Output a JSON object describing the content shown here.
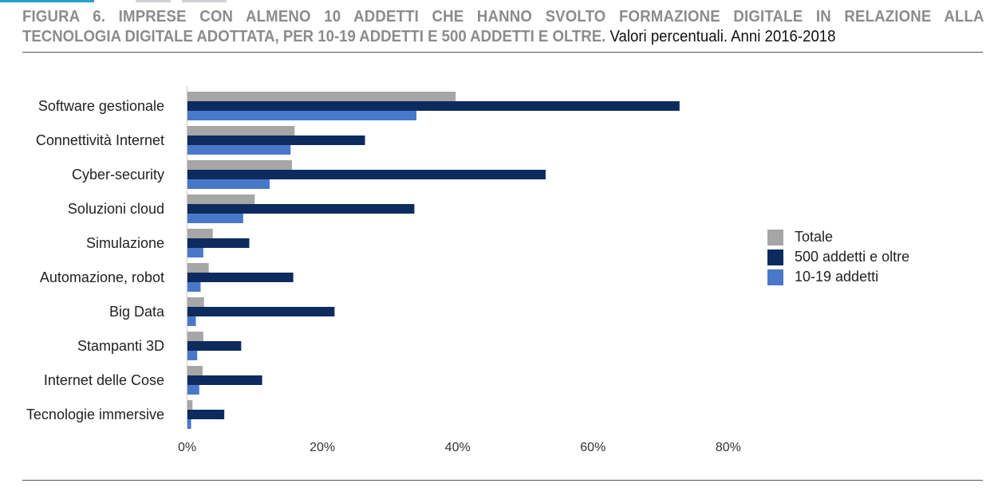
{
  "header": {
    "title_line1": "FIGURA 6. IMPRESE CON ALMENO 10 ADDETTI CHE HANNO SVOLTO FORMAZIONE DIGITALE IN RELAZIONE ALLA",
    "title_line2": "TECNOLOGIA DIGITALE ADOTTATA, PER 10-19 ADDETTI E 500 ADDETTI E OLTRE.",
    "subtitle": "Valori percentuali. Anni 2016-2018"
  },
  "colors": {
    "totale": "#a6a6a6",
    "oltre500": "#0d2b5e",
    "addetti10_19": "#4a78c8"
  },
  "chart_data": {
    "type": "bar",
    "orientation": "horizontal",
    "categories": [
      "Software gestionale",
      "Connettività Internet",
      "Cyber-security",
      "Soluzioni cloud",
      "Simulazione",
      "Automazione, robot",
      "Big Data",
      "Stampanti 3D",
      "Internet delle Cose",
      "Tecnologie immersive"
    ],
    "series": [
      {
        "name": "Totale",
        "color": "#a6a6a6",
        "values": [
          39.7,
          15.9,
          15.5,
          10.0,
          3.8,
          3.2,
          2.5,
          2.4,
          2.3,
          0.8
        ]
      },
      {
        "name": "500 addetti e oltre",
        "color": "#0d2b5e",
        "values": [
          72.8,
          26.3,
          53.0,
          33.6,
          9.2,
          15.7,
          21.8,
          8.0,
          11.1,
          5.5
        ]
      },
      {
        "name": "10-19 addetti",
        "color": "#4a78c8",
        "values": [
          33.9,
          15.3,
          12.2,
          8.3,
          2.4,
          2.0,
          1.3,
          1.5,
          1.8,
          0.6
        ]
      }
    ],
    "xlim": [
      0,
      80
    ],
    "ticks": [
      "0%",
      "20%",
      "40%",
      "60%",
      "80%"
    ],
    "tick_values": [
      0,
      20,
      40,
      60,
      80
    ],
    "grid": false,
    "legend": "right"
  },
  "legend": {
    "items": [
      {
        "label": "Totale"
      },
      {
        "label": "500 addetti e oltre"
      },
      {
        "label": "10-19 addetti"
      }
    ]
  }
}
